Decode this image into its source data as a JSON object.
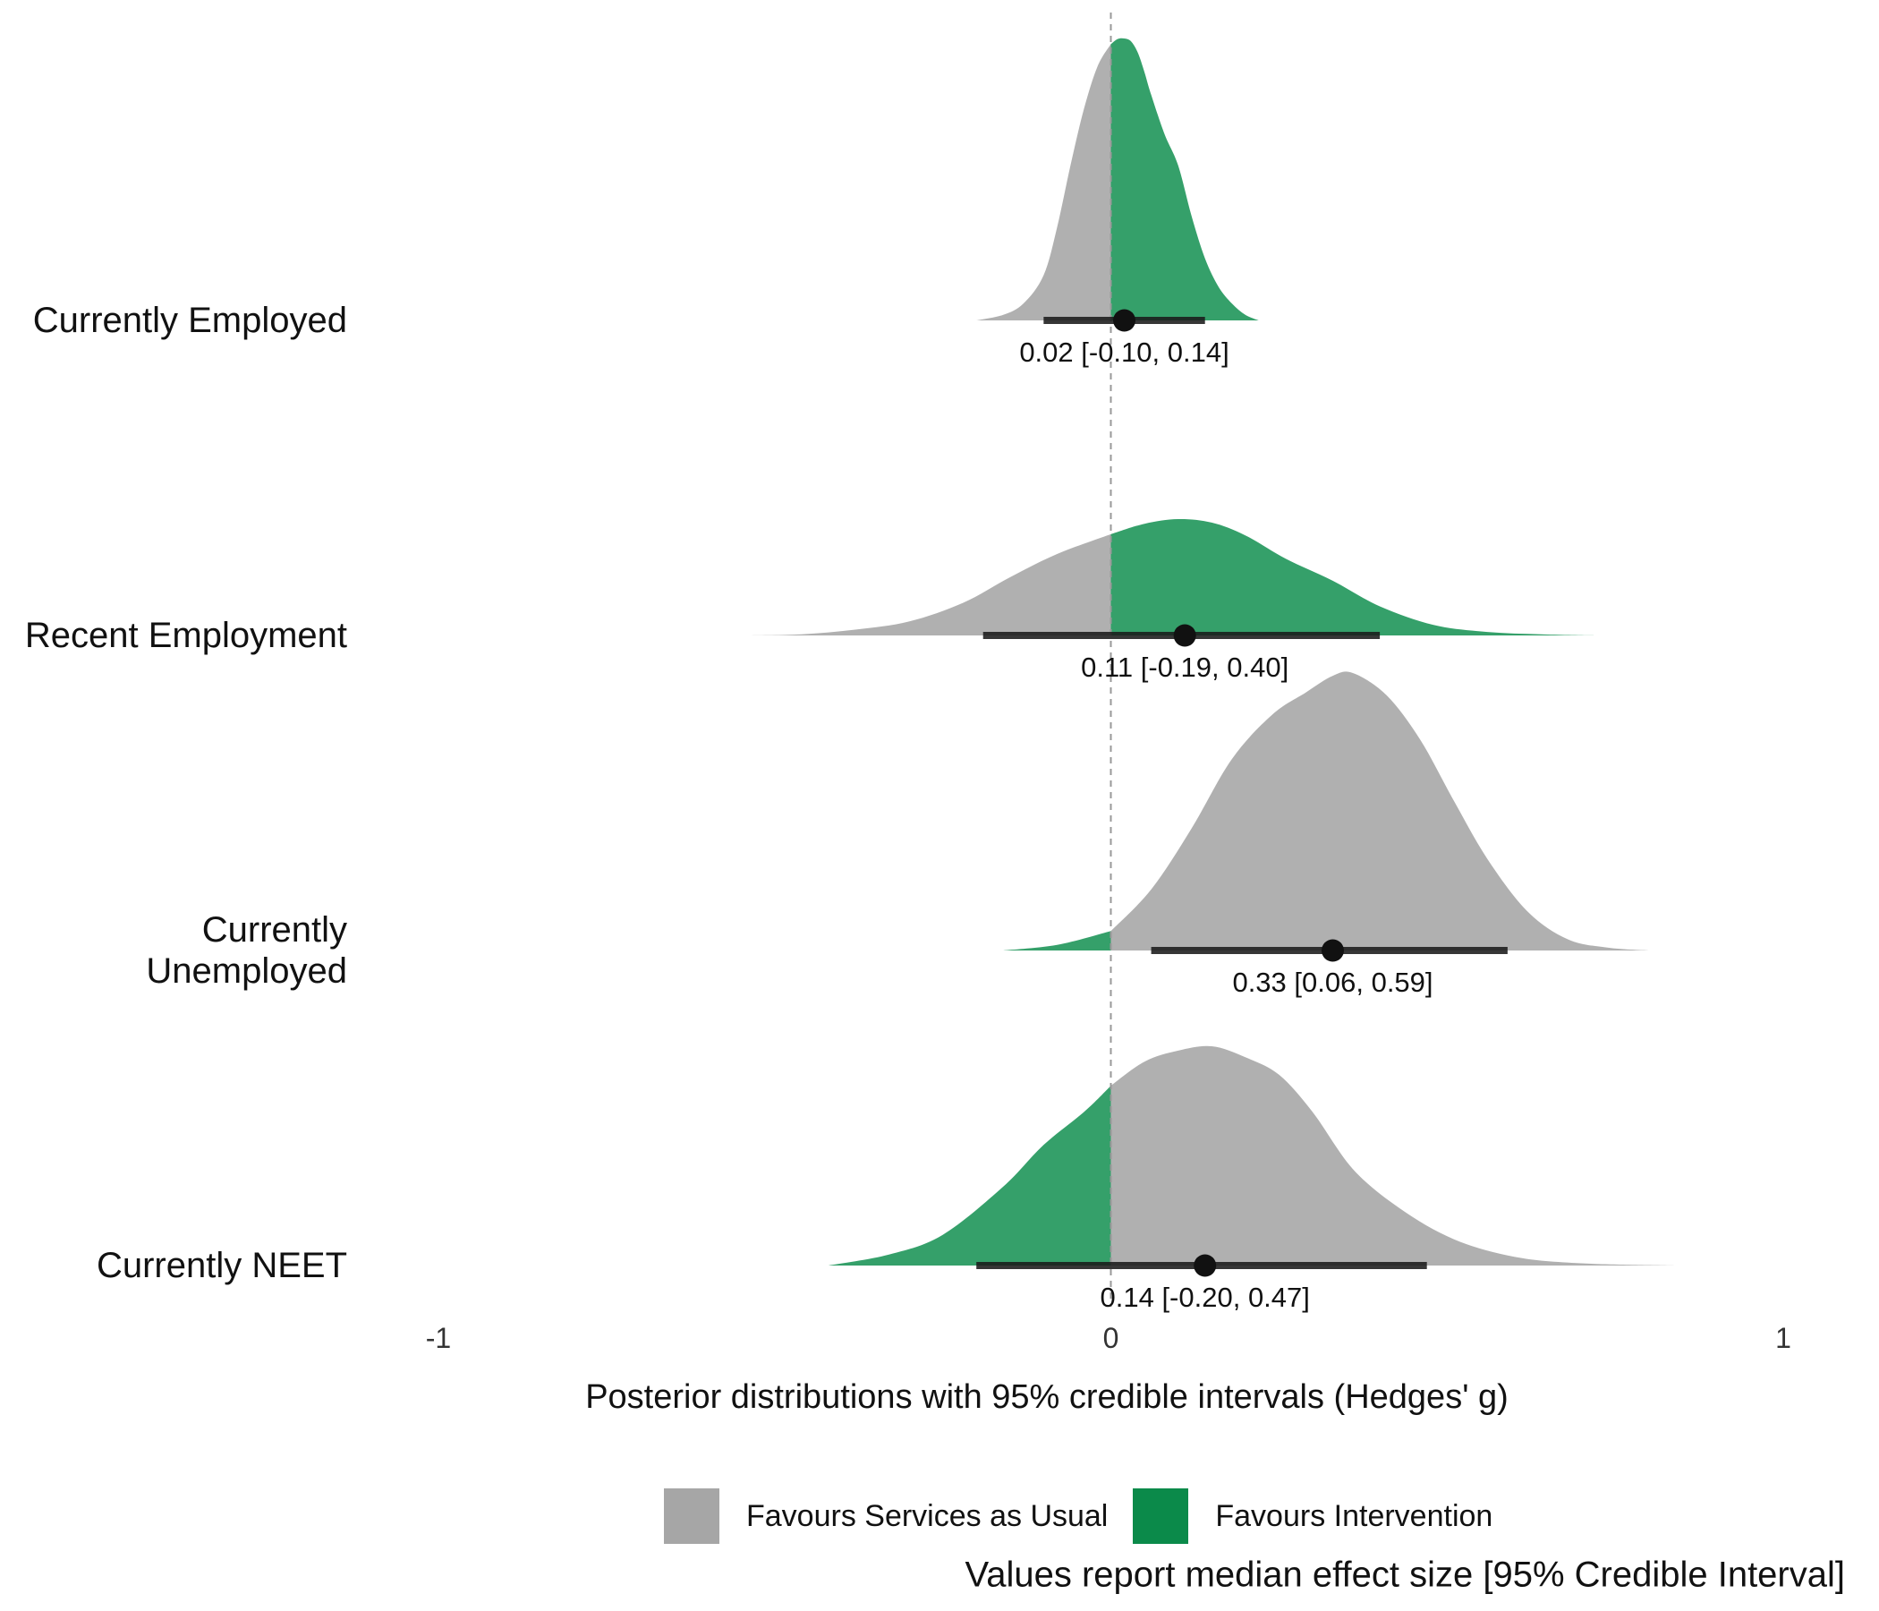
{
  "chart_data": {
    "type": "density",
    "xlabel": "Posterior distributions with 95% credible intervals (Hedges' g)",
    "xlim": [
      -1,
      1
    ],
    "xticks": [
      -1,
      0,
      1
    ],
    "xtick_labels": [
      "-1",
      "0",
      "1"
    ],
    "reference_line_x": 0,
    "caption": "Values report median effect size [95% Credible Interval]",
    "legend": {
      "position": "bottom",
      "items": [
        {
          "label": "Favours Services as Usual",
          "color": "#a6a6a6"
        },
        {
          "label": "Favours Intervention",
          "color": "#0b8a4a"
        }
      ]
    },
    "colors": {
      "grey": "#b0b0b0",
      "green": "#35a06a",
      "line": "#1a1a1a"
    },
    "series": [
      {
        "label_lines": [
          "Currently Employed"
        ],
        "median": 0.02,
        "ci": [
          -0.1,
          0.14
        ],
        "text": "0.02 [-0.10, 0.14]",
        "positive_color": "green",
        "negative_color": "grey",
        "density_x": [
          -0.2,
          -0.16,
          -0.13,
          -0.1,
          -0.08,
          -0.06,
          -0.04,
          -0.02,
          0.0,
          0.01,
          0.02,
          0.03,
          0.04,
          0.05,
          0.06,
          0.08,
          0.1,
          0.12,
          0.14,
          0.16,
          0.18,
          0.2,
          0.22
        ],
        "density_y": [
          0.0,
          0.02,
          0.06,
          0.16,
          0.33,
          0.55,
          0.75,
          0.9,
          0.98,
          0.998,
          1.0,
          0.99,
          0.95,
          0.88,
          0.8,
          0.66,
          0.55,
          0.37,
          0.22,
          0.12,
          0.06,
          0.02,
          0.0
        ]
      },
      {
        "label_lines": [
          "Recent Employment"
        ],
        "median": 0.11,
        "ci": [
          -0.19,
          0.4
        ],
        "text": "0.11 [-0.19, 0.40]",
        "positive_color": "green",
        "negative_color": "grey",
        "density_x": [
          -0.54,
          -0.46,
          -0.38,
          -0.3,
          -0.22,
          -0.15,
          -0.08,
          0.0,
          0.05,
          0.1,
          0.15,
          0.2,
          0.26,
          0.33,
          0.4,
          0.48,
          0.56,
          0.64,
          0.72
        ],
        "density_y": [
          0.0,
          0.01,
          0.05,
          0.12,
          0.28,
          0.5,
          0.7,
          0.87,
          0.96,
          1.0,
          0.97,
          0.86,
          0.66,
          0.47,
          0.25,
          0.09,
          0.03,
          0.01,
          0.0
        ]
      },
      {
        "label_lines": [
          "Currently",
          "Unemployed"
        ],
        "median": 0.33,
        "ci": [
          0.06,
          0.59
        ],
        "text": "0.33 [0.06, 0.59]",
        "positive_color": "grey",
        "negative_color": "green",
        "density_x": [
          -0.16,
          -0.08,
          0.0,
          0.06,
          0.12,
          0.18,
          0.24,
          0.29,
          0.33,
          0.36,
          0.41,
          0.46,
          0.51,
          0.56,
          0.62,
          0.68,
          0.74,
          0.8
        ],
        "density_y": [
          0.0,
          0.02,
          0.07,
          0.22,
          0.44,
          0.69,
          0.85,
          0.93,
          0.99,
          1.0,
          0.92,
          0.76,
          0.54,
          0.33,
          0.14,
          0.04,
          0.01,
          0.0
        ]
      },
      {
        "label_lines": [
          "Currently NEET"
        ],
        "median": 0.14,
        "ci": [
          -0.2,
          0.47
        ],
        "text": "0.14 [-0.20, 0.47]",
        "positive_color": "grey",
        "negative_color": "green",
        "density_x": [
          -0.42,
          -0.33,
          -0.25,
          -0.16,
          -0.1,
          -0.04,
          0.0,
          0.05,
          0.1,
          0.15,
          0.2,
          0.25,
          0.3,
          0.36,
          0.43,
          0.51,
          0.6,
          0.7,
          0.84
        ],
        "density_y": [
          0.0,
          0.05,
          0.14,
          0.36,
          0.55,
          0.7,
          0.82,
          0.93,
          0.98,
          1.0,
          0.95,
          0.87,
          0.7,
          0.44,
          0.26,
          0.12,
          0.04,
          0.01,
          0.0
        ]
      }
    ]
  }
}
